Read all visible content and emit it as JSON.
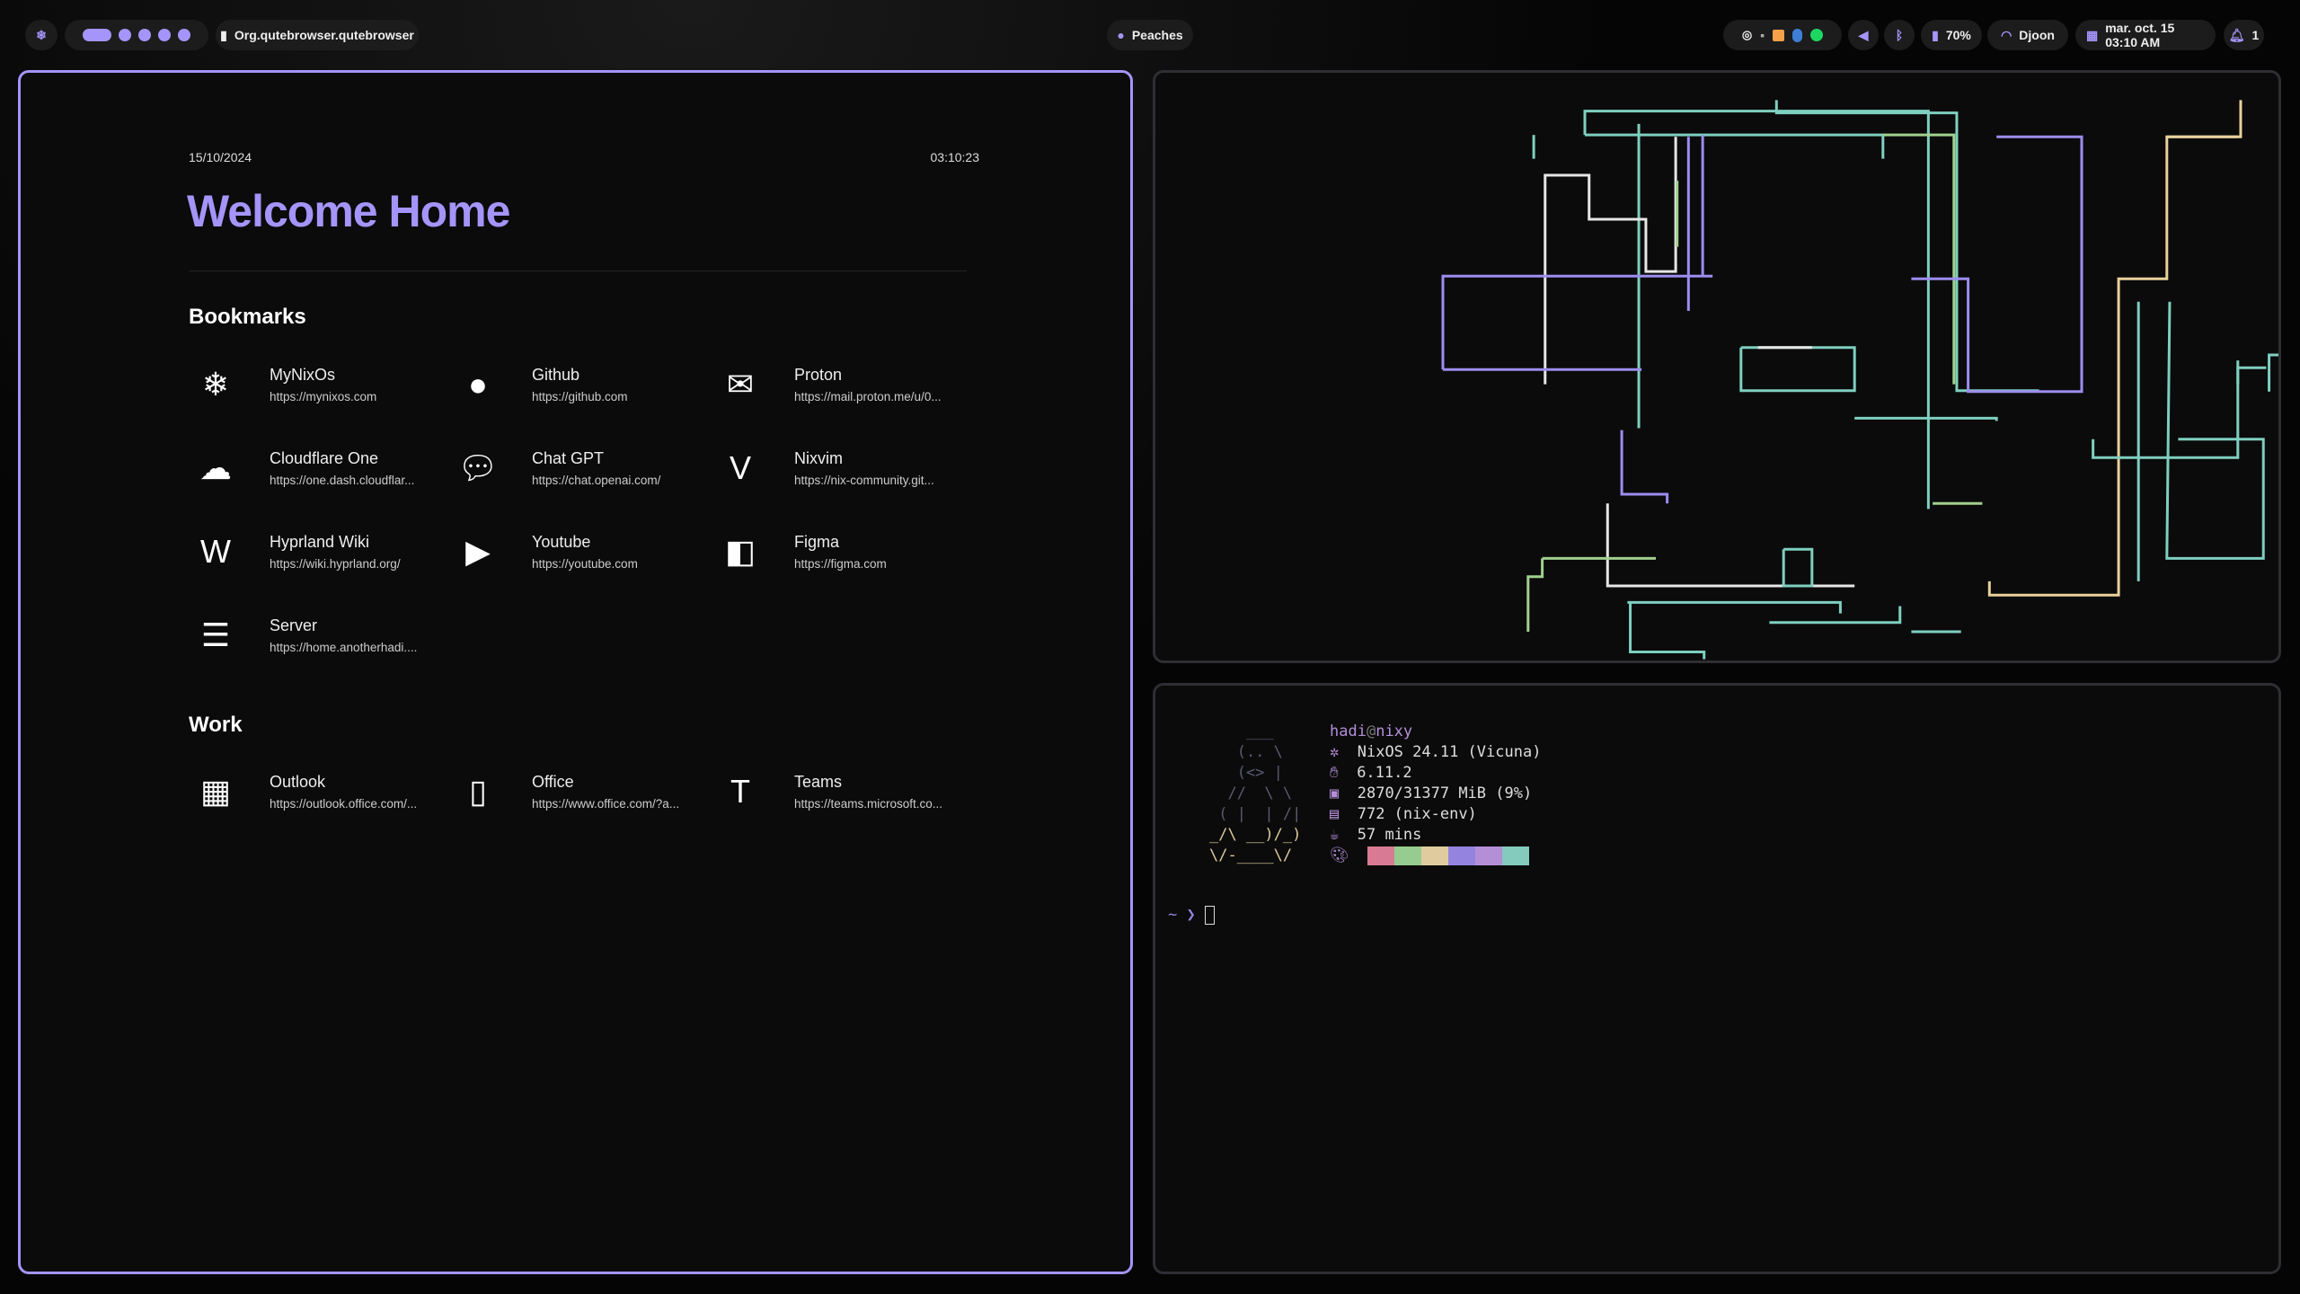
{
  "topbar": {
    "window_title": "Org.qutebrowser.qutebrowser",
    "media": "Peaches",
    "battery": "70%",
    "wifi": "Djoon",
    "datetime": "mar. oct. 15  03:10 AM",
    "notifications": "1",
    "workspaces": 5,
    "active_workspace": 1,
    "tray_icons": [
      "disc-icon",
      "app-icon",
      "drive-icon",
      "bluetooth-icon",
      "spotify-icon"
    ]
  },
  "colors": {
    "accent": "#a594f9",
    "pipe_colors": [
      "#7ecfc0",
      "#9d8cf0",
      "#a1d08e",
      "#e8d19c",
      "#e6e6e6"
    ],
    "palette": [
      "#d87a94",
      "#96cc8f",
      "#dfcb9e",
      "#9484e0",
      "#b48fd8",
      "#84cabd"
    ]
  },
  "home": {
    "date": "15/10/2024",
    "time": "03:10:23",
    "title": "Welcome Home",
    "bookmarks_title": "Bookmarks",
    "bookmarks": [
      {
        "name": "MyNixOs",
        "url": "https://mynixos.com",
        "icon": "nixos-icon"
      },
      {
        "name": "Github",
        "url": "https://github.com",
        "icon": "github-icon"
      },
      {
        "name": "Proton",
        "url": "https://mail.proton.me/u/0...",
        "icon": "mail-icon"
      },
      {
        "name": "Cloudflare One",
        "url": "https://one.dash.cloudflar...",
        "icon": "cloud-icon"
      },
      {
        "name": "Chat GPT",
        "url": "https://chat.openai.com/",
        "icon": "chat-icon"
      },
      {
        "name": "Nixvim",
        "url": "https://nix-community.git...",
        "icon": "vim-icon"
      },
      {
        "name": "Hyprland Wiki",
        "url": "https://wiki.hyprland.org/",
        "icon": "wikipedia-icon"
      },
      {
        "name": "Youtube",
        "url": "https://youtube.com",
        "icon": "youtube-icon"
      },
      {
        "name": "Figma",
        "url": "https://figma.com",
        "icon": "figma-icon"
      },
      {
        "name": "Server",
        "url": "https://home.anotherhadi....",
        "icon": "server-icon"
      }
    ],
    "work_title": "Work",
    "work": [
      {
        "name": "Outlook",
        "url": "https://outlook.office.com/...",
        "icon": "outlook-icon"
      },
      {
        "name": "Office",
        "url": "https://www.office.com/?a...",
        "icon": "office-icon"
      },
      {
        "name": "Teams",
        "url": "https://teams.microsoft.co...",
        "icon": "teams-icon"
      }
    ]
  },
  "terminal": {
    "user": "hadi",
    "at": "@",
    "host": "nixy",
    "os": "NixOS 24.11 (Vicuna)",
    "kernel": "6.11.2",
    "memory": "2870/31377 MiB (9%)",
    "packages": "772 (nix-env)",
    "uptime": "57 mins",
    "prompt": "~ ❯",
    "art": [
      "    ___",
      "   (.. \\",
      "   (<> |",
      "  //  \\ \\",
      " ( |  | /|",
      "_/\\ __)/_)",
      "\\/-____\\/"
    ]
  }
}
